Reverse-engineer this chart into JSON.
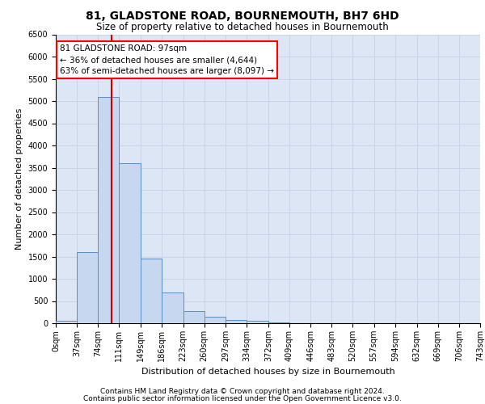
{
  "title_line1": "81, GLADSTONE ROAD, BOURNEMOUTH, BH7 6HD",
  "title_line2": "Size of property relative to detached houses in Bournemouth",
  "xlabel": "Distribution of detached houses by size in Bournemouth",
  "ylabel": "Number of detached properties",
  "footer_line1": "Contains HM Land Registry data © Crown copyright and database right 2024.",
  "footer_line2": "Contains public sector information licensed under the Open Government Licence v3.0.",
  "annotation_line1": "81 GLADSTONE ROAD: 97sqm",
  "annotation_line2": "← 36% of detached houses are smaller (4,644)",
  "annotation_line3": "63% of semi-detached houses are larger (8,097) →",
  "property_size_sqm": 97,
  "bin_edges": [
    0,
    37,
    74,
    111,
    149,
    186,
    223,
    260,
    297,
    334,
    372,
    409,
    446,
    483,
    520,
    557,
    594,
    632,
    669,
    706,
    743
  ],
  "bin_labels": [
    "0sqm",
    "37sqm",
    "74sqm",
    "111sqm",
    "149sqm",
    "186sqm",
    "223sqm",
    "260sqm",
    "297sqm",
    "334sqm",
    "372sqm",
    "409sqm",
    "446sqm",
    "483sqm",
    "520sqm",
    "557sqm",
    "594sqm",
    "632sqm",
    "669sqm",
    "706sqm",
    "743sqm"
  ],
  "bar_heights": [
    50,
    1600,
    5100,
    3600,
    1450,
    700,
    270,
    150,
    75,
    50,
    20,
    0,
    0,
    0,
    0,
    0,
    0,
    0,
    0,
    0
  ],
  "bar_color": "#c5d8f0",
  "bar_edge_color": "#5b8ec4",
  "vline_color": "#cc0000",
  "vline_x": 97,
  "ylim": [
    0,
    6500
  ],
  "yticks": [
    0,
    500,
    1000,
    1500,
    2000,
    2500,
    3000,
    3500,
    4000,
    4500,
    5000,
    5500,
    6000,
    6500
  ],
  "grid_color": "#c8d4e8",
  "background_color": "#dce6f4",
  "plot_background": "#ffffff",
  "title_fontsize": 10,
  "subtitle_fontsize": 8.5,
  "annotation_fontsize": 7.5,
  "ylabel_fontsize": 8,
  "xlabel_fontsize": 8,
  "tick_fontsize": 7,
  "footer_fontsize": 6.5
}
